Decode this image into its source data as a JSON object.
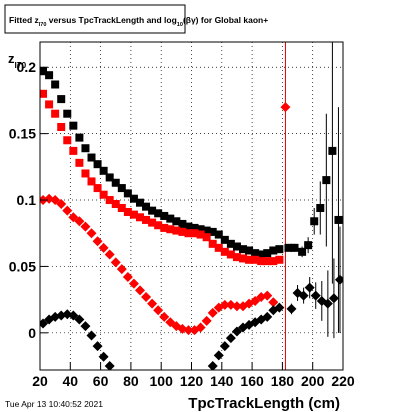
{
  "chart_data": {
    "type": "scatter",
    "title_parts": [
      {
        "text": "Fitted  z"
      },
      {
        "text": "I70",
        "sub": true
      },
      {
        "text": " versus TpcTrackLength and log"
      },
      {
        "text": "10",
        "sub": true
      },
      {
        "text": "(βγ) for Global kaon+"
      }
    ],
    "ylabel_parts": [
      {
        "text": "z"
      },
      {
        "text": "I70",
        "sub": true
      }
    ],
    "xlabel": "TpcTrackLength (cm)",
    "timestamp": "Tue Apr 13 10:40:52 2021",
    "xlim": [
      20,
      220
    ],
    "ylim": [
      -0.028,
      0.219
    ],
    "xticks": [
      20,
      40,
      60,
      80,
      100,
      120,
      140,
      160,
      180,
      200,
      220
    ],
    "yticks": [
      0,
      0.05,
      0.1,
      0.15,
      0.2
    ],
    "grid": true,
    "vline": {
      "x": 182,
      "color": "#e00000"
    },
    "series": [
      {
        "marker": "square",
        "color": "#000000",
        "x": [
          22,
          26,
          30,
          34,
          38,
          42,
          46,
          50,
          54,
          58,
          62,
          66,
          70,
          74,
          78,
          82,
          86,
          90,
          94,
          98,
          102,
          106,
          110,
          114,
          118,
          122,
          126,
          130,
          134,
          138,
          142,
          146,
          150,
          154,
          158,
          162,
          166,
          170,
          174,
          178,
          184,
          188,
          193,
          197,
          201,
          205,
          209,
          213,
          217
        ],
        "values": [
          0.197,
          0.194,
          0.187,
          0.176,
          0.165,
          0.156,
          0.147,
          0.139,
          0.132,
          0.127,
          0.122,
          0.117,
          0.113,
          0.109,
          0.105,
          0.101,
          0.098,
          0.095,
          0.092,
          0.09,
          0.088,
          0.086,
          0.084,
          0.082,
          0.08,
          0.079,
          0.078,
          0.077,
          0.076,
          0.074,
          0.07,
          0.067,
          0.065,
          0.063,
          0.062,
          0.06,
          0.059,
          0.06,
          0.062,
          0.063,
          0.064,
          0.064,
          0.061,
          0.066,
          0.084,
          0.094,
          0.115,
          0.137,
          0.085
        ],
        "errors": [
          0.001,
          0.001,
          0.001,
          0.001,
          0.001,
          0.001,
          0.001,
          0.001,
          0.001,
          0.001,
          0.001,
          0.001,
          0.001,
          0.001,
          0.001,
          0.001,
          0.001,
          0.001,
          0.001,
          0.001,
          0.001,
          0.001,
          0.001,
          0.001,
          0.001,
          0.001,
          0.001,
          0.001,
          0.001,
          0.001,
          0.001,
          0.001,
          0.001,
          0.001,
          0.001,
          0.001,
          0.001,
          0.001,
          0.001,
          0.001,
          0.002,
          0.003,
          0.004,
          0.006,
          0.01,
          0.02,
          0.05,
          0.1,
          0.085
        ]
      },
      {
        "marker": "square",
        "color": "#ff0000",
        "x": [
          22,
          26,
          30,
          34,
          38,
          42,
          46,
          50,
          54,
          58,
          62,
          66,
          70,
          74,
          78,
          82,
          86,
          90,
          94,
          98,
          102,
          106,
          110,
          114,
          118,
          122,
          126,
          130,
          134,
          138,
          142,
          146,
          150,
          154,
          158,
          162,
          166,
          170,
          174,
          178
        ],
        "values": [
          0.18,
          0.172,
          0.165,
          0.155,
          0.145,
          0.137,
          0.128,
          0.12,
          0.114,
          0.109,
          0.104,
          0.1,
          0.097,
          0.094,
          0.091,
          0.089,
          0.087,
          0.085,
          0.083,
          0.081,
          0.079,
          0.078,
          0.077,
          0.076,
          0.075,
          0.075,
          0.074,
          0.072,
          0.067,
          0.064,
          0.061,
          0.059,
          0.057,
          0.056,
          0.055,
          0.055,
          0.054,
          0.054,
          0.054,
          0.055
        ]
      },
      {
        "marker": "diamond",
        "color": "#ff0000",
        "x": [
          22,
          26,
          30,
          34,
          38,
          42,
          46,
          50,
          54,
          58,
          62,
          66,
          70,
          74,
          78,
          82,
          86,
          90,
          94,
          98,
          102,
          106,
          110,
          114,
          118,
          122,
          126,
          130,
          134,
          138,
          142,
          146,
          150,
          154,
          158,
          162,
          166,
          170,
          174,
          182
        ],
        "values": [
          0.1,
          0.101,
          0.1,
          0.097,
          0.092,
          0.087,
          0.084,
          0.08,
          0.075,
          0.069,
          0.064,
          0.059,
          0.053,
          0.048,
          0.042,
          0.037,
          0.032,
          0.027,
          0.022,
          0.017,
          0.012,
          0.008,
          0.005,
          0.003,
          0.002,
          0.002,
          0.004,
          0.009,
          0.015,
          0.019,
          0.021,
          0.021,
          0.02,
          0.02,
          0.022,
          0.024,
          0.027,
          0.028,
          0.023,
          0.17
        ]
      },
      {
        "marker": "diamond",
        "color": "#000000",
        "x": [
          22,
          26,
          30,
          34,
          38,
          42,
          46,
          50,
          54,
          58,
          62,
          66,
          134,
          138,
          142,
          146,
          150,
          154,
          158,
          162,
          166,
          170,
          174,
          178,
          186,
          190,
          194,
          198,
          202,
          206,
          210,
          214,
          218
        ],
        "values": [
          0.007,
          0.01,
          0.012,
          0.013,
          0.014,
          0.013,
          0.01,
          0.005,
          -0.002,
          -0.01,
          -0.018,
          -0.025,
          -0.025,
          -0.017,
          -0.01,
          -0.004,
          0.001,
          0.004,
          0.006,
          0.008,
          0.01,
          0.012,
          0.017,
          0.019,
          0.018,
          0.03,
          0.028,
          0.034,
          0.028,
          0.024,
          0.022,
          0.026,
          0.04
        ],
        "errors": [
          0.001,
          0.001,
          0.001,
          0.001,
          0.001,
          0.001,
          0.001,
          0.001,
          0.001,
          0.001,
          0.001,
          0.001,
          0.001,
          0.001,
          0.001,
          0.001,
          0.001,
          0.001,
          0.001,
          0.001,
          0.001,
          0.001,
          0.001,
          0.001,
          0.004,
          0.006,
          0.006,
          0.008,
          0.01,
          0.015,
          0.025,
          0.03,
          0.04
        ]
      }
    ]
  }
}
